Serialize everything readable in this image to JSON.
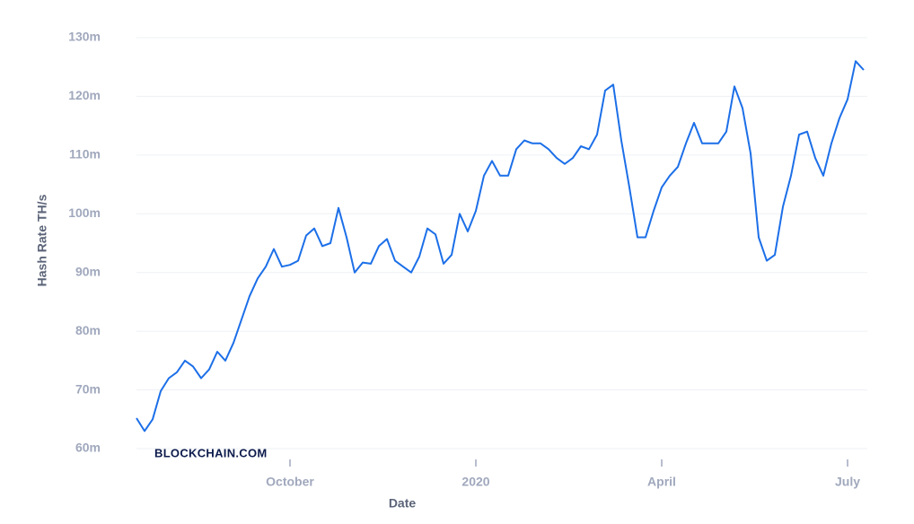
{
  "chart_data": {
    "type": "line",
    "x_label": "Date",
    "y_label": "Hash Rate TH/s",
    "watermark": "BLOCKCHAIN.COM",
    "categories": [
      null,
      null,
      null,
      null,
      null,
      null,
      null,
      null,
      null,
      null,
      null,
      null,
      null,
      null,
      null,
      null,
      null,
      null,
      null,
      "October",
      null,
      null,
      null,
      null,
      null,
      null,
      null,
      null,
      null,
      null,
      null,
      null,
      null,
      null,
      null,
      null,
      null,
      null,
      null,
      null,
      null,
      null,
      "2020",
      null,
      null,
      null,
      null,
      null,
      null,
      null,
      null,
      null,
      null,
      null,
      null,
      null,
      null,
      null,
      null,
      null,
      null,
      null,
      null,
      null,
      null,
      "April",
      null,
      null,
      null,
      null,
      null,
      null,
      null,
      null,
      null,
      null,
      null,
      null,
      null,
      null,
      null,
      null,
      null,
      null,
      null,
      null,
      null,
      null,
      "July",
      null,
      null
    ],
    "series": [
      {
        "name": "Hash Rate",
        "color": "#1c6fe8",
        "values": [
          65.2,
          63,
          65,
          69.8,
          72,
          73,
          75,
          74,
          72,
          73.5,
          76.5,
          75,
          78,
          82,
          86,
          89,
          91,
          94,
          91,
          91.3,
          92,
          96.3,
          97.5,
          94.5,
          95,
          101,
          96,
          90,
          91.7,
          91.5,
          94.5,
          95.7,
          92,
          91,
          90,
          92.7,
          97.5,
          96.5,
          91.5,
          93,
          100,
          97,
          100.5,
          106.5,
          109,
          106.5,
          106.5,
          111,
          112.5,
          112,
          112,
          111,
          109.5,
          108.5,
          109.5,
          111.5,
          111,
          113.5,
          121,
          122,
          112.5,
          104.5,
          96,
          96,
          100.5,
          104.5,
          106.5,
          108,
          112,
          115.5,
          112,
          112,
          112,
          114,
          121.7,
          118,
          110.3,
          96,
          92,
          93,
          101.2,
          106.5,
          113.5,
          114,
          109.5,
          106.5,
          112,
          116.3,
          119.5,
          126,
          124.5
        ]
      }
    ],
    "ylim": [
      60,
      130
    ],
    "yticks": [
      {
        "value": 60,
        "label": "60m"
      },
      {
        "value": 70,
        "label": "70m"
      },
      {
        "value": 80,
        "label": "80m"
      },
      {
        "value": 90,
        "label": "90m"
      },
      {
        "value": 100,
        "label": "100m"
      },
      {
        "value": 110,
        "label": "110m"
      },
      {
        "value": 120,
        "label": "120m"
      },
      {
        "value": 130,
        "label": "130m"
      }
    ],
    "grid": true
  }
}
